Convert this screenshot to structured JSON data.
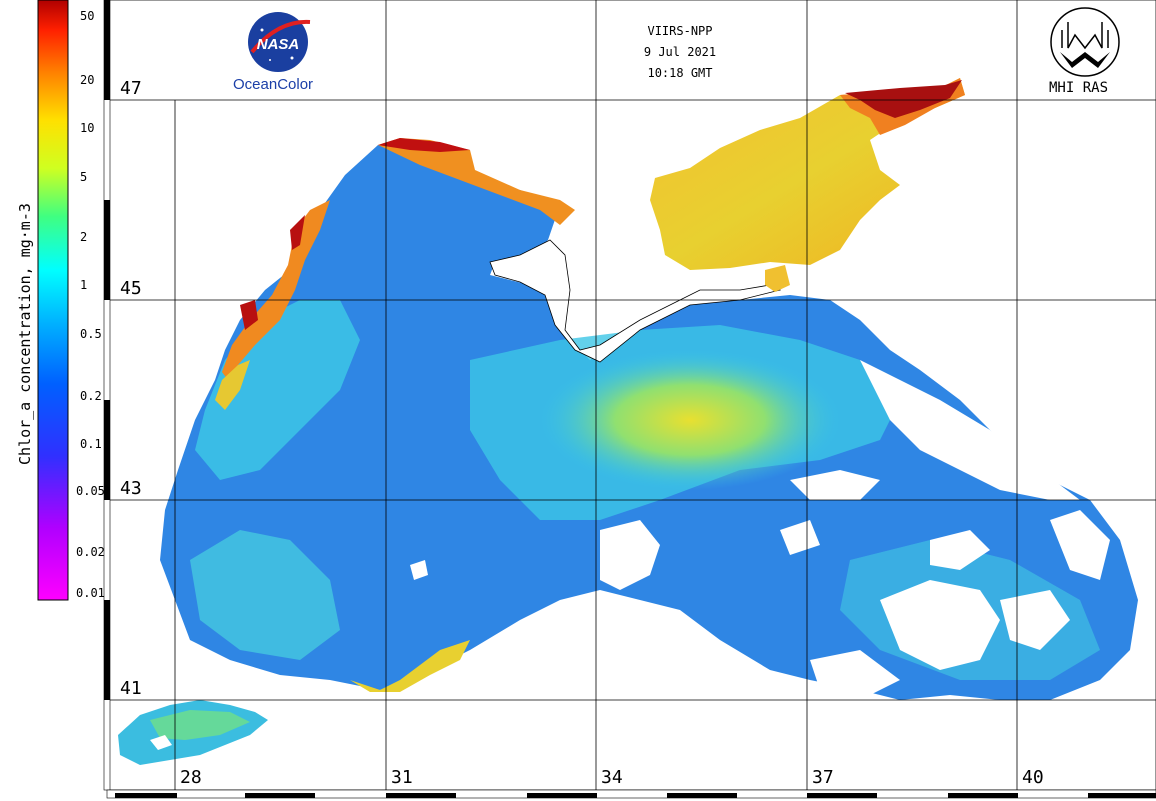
{
  "header": {
    "sensor": "VIIRS-NPP",
    "date": "9 Jul 2021",
    "time": "10:18 GMT"
  },
  "logos": {
    "nasa_text": "NASA",
    "oceancolor_label": "OceanColor",
    "mhi_label": "MHI RAS"
  },
  "colorbar": {
    "title": "Chlor_a concentration, mg·m-3",
    "ticks": [
      "50",
      "20",
      "10",
      "5",
      "2",
      "1",
      "0.5",
      "0.2",
      "0.1",
      "0.05",
      "0.02",
      "0.01"
    ],
    "colors": [
      "#ff00ff",
      "#a000ff",
      "#2020ff",
      "#00a0ff",
      "#00ffff",
      "#20ff80",
      "#ffff00",
      "#ff9000",
      "#ff2000",
      "#a00000"
    ]
  },
  "latitude_labels": [
    "47",
    "45",
    "43",
    "41"
  ],
  "longitude_labels": [
    "28",
    "31",
    "34",
    "37",
    "40"
  ],
  "map_colors": {
    "water_low": "#2f7fe0",
    "water_mid": "#38c8e8",
    "water_green": "#6fe088",
    "water_high": "#f0d030",
    "coastal_high": "#f07a20",
    "coastal_max": "#b01010",
    "cloud": "#ffffff"
  }
}
